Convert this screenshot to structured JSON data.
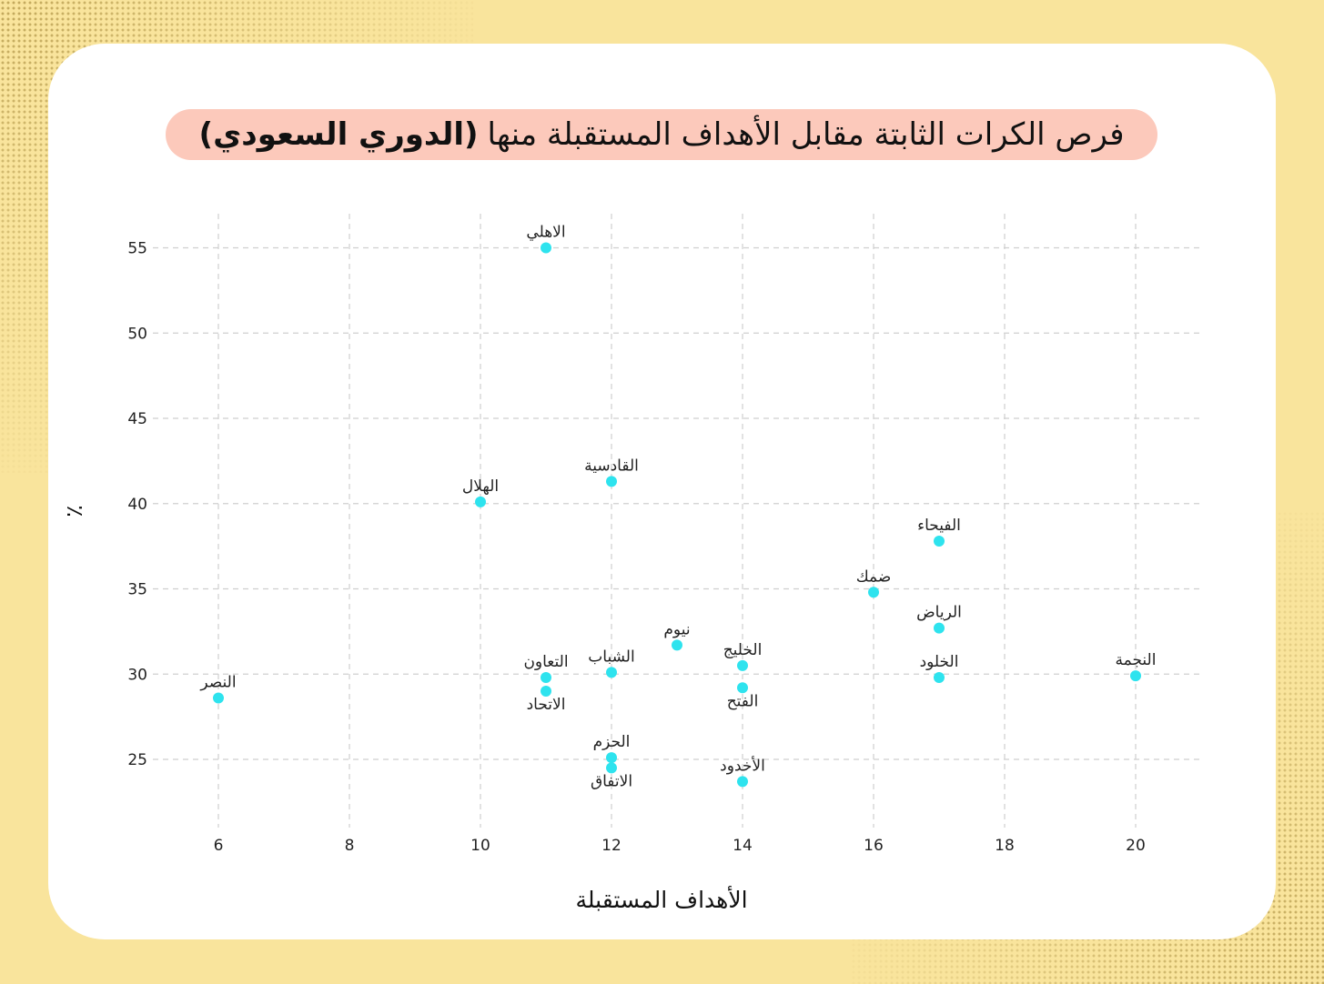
{
  "title": {
    "main": "فرص الكرات الثابتة مقابل الأهداف المستقبلة منها",
    "bold": "(الدوري السعودي)"
  },
  "colors": {
    "background": "#f9e49c",
    "card": "#ffffff",
    "title_pill": "#fcc9bb",
    "point": "#2ee3ee"
  },
  "chart_data": {
    "type": "scatter",
    "title": "فرص الكرات الثابتة مقابل الأهداف المستقبلة منها (الدوري السعودي)",
    "xlabel": "الأهداف المستقبلة",
    "ylabel": "٪",
    "xlim": [
      5,
      21
    ],
    "ylim": [
      21,
      57
    ],
    "xticks": [
      6,
      8,
      10,
      12,
      14,
      16,
      18,
      20
    ],
    "yticks": [
      25,
      30,
      35,
      40,
      45,
      50,
      55
    ],
    "grid": true,
    "points": [
      {
        "label": "الاهلي",
        "x": 11,
        "y": 55.0,
        "label_pos": "above"
      },
      {
        "label": "القادسية",
        "x": 12,
        "y": 41.3,
        "label_pos": "above"
      },
      {
        "label": "الهلال",
        "x": 10,
        "y": 40.1,
        "label_pos": "above"
      },
      {
        "label": "الفيحاء",
        "x": 17,
        "y": 37.8,
        "label_pos": "above"
      },
      {
        "label": "ضمك",
        "x": 16,
        "y": 34.8,
        "label_pos": "above"
      },
      {
        "label": "الرياض",
        "x": 17,
        "y": 32.7,
        "label_pos": "above"
      },
      {
        "label": "نيوم",
        "x": 13,
        "y": 31.7,
        "label_pos": "above"
      },
      {
        "label": "الخليج",
        "x": 14,
        "y": 30.5,
        "label_pos": "above"
      },
      {
        "label": "الشباب",
        "x": 12,
        "y": 30.1,
        "label_pos": "above"
      },
      {
        "label": "الخلود",
        "x": 17,
        "y": 29.8,
        "label_pos": "above"
      },
      {
        "label": "النجمة",
        "x": 20,
        "y": 29.9,
        "label_pos": "above"
      },
      {
        "label": "التعاون",
        "x": 11,
        "y": 29.8,
        "label_pos": "above"
      },
      {
        "label": "الاتحاد",
        "x": 11,
        "y": 29.0,
        "label_pos": "below"
      },
      {
        "label": "الفتح",
        "x": 14,
        "y": 29.2,
        "label_pos": "below"
      },
      {
        "label": "النصر",
        "x": 6,
        "y": 28.6,
        "label_pos": "above"
      },
      {
        "label": "الحزم",
        "x": 12,
        "y": 25.1,
        "label_pos": "above"
      },
      {
        "label": "الاتفاق",
        "x": 12,
        "y": 24.5,
        "label_pos": "below"
      },
      {
        "label": "الأخدود",
        "x": 14,
        "y": 23.7,
        "label_pos": "above"
      }
    ]
  }
}
